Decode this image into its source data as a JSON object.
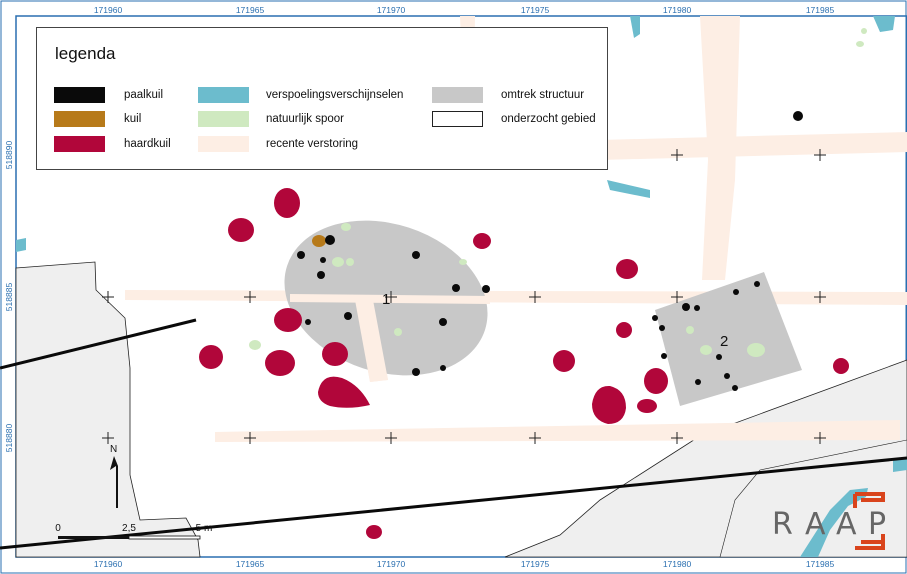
{
  "legend": {
    "title": "legenda",
    "items": [
      {
        "label": "paalkuil",
        "color": "#0a0a0a",
        "outline": false
      },
      {
        "label": "kuil",
        "color": "#b77a1a",
        "outline": false
      },
      {
        "label": "haardkuil",
        "color": "#b1063a",
        "outline": false
      },
      {
        "label": "verspoelingsverschijnselen",
        "color": "#6cbccd",
        "outline": false
      },
      {
        "label": "natuurlijk spoor",
        "color": "#cfe9c0",
        "outline": false
      },
      {
        "label": "recente verstoring",
        "color": "#fdeee4",
        "outline": false
      },
      {
        "label": "omtrek structuur",
        "color": "#c8c8c8",
        "outline": false
      },
      {
        "label": "onderzocht gebied",
        "color": "#ffffff",
        "outline": true
      }
    ]
  },
  "grid": {
    "x_labels_top": [
      "171960",
      "171965",
      "171970",
      "171975",
      "171980",
      "171985"
    ],
    "x_labels_bottom": [
      "171960",
      "171965",
      "171970",
      "171975",
      "171980",
      "171985"
    ],
    "y_labels": [
      "518890",
      "518885",
      "518880"
    ]
  },
  "structures": [
    {
      "label": "1"
    },
    {
      "label": "2"
    }
  ],
  "north_arrow": {
    "label": "N"
  },
  "scale_bar": {
    "labels": [
      "0",
      "2,5",
      "5 m"
    ]
  },
  "logo": {
    "letters": [
      "R",
      "A",
      "A",
      "P"
    ],
    "accent_color": "#d9441c"
  }
}
